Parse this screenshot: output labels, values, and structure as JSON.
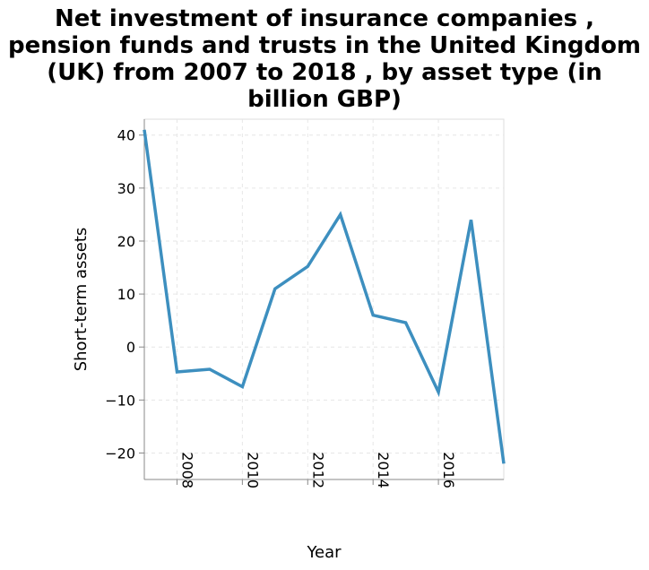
{
  "chart_data": {
    "type": "line",
    "title_lines": [
      "Net investment of insurance companies ,",
      "pension funds and trusts in the United Kingdom",
      "(UK) from 2007 to 2018 , by asset type (in",
      "billion GBP)"
    ],
    "xlabel": "Year",
    "ylabel": "Short-term assets",
    "xlim": [
      2007,
      2018
    ],
    "ylim": [
      -25,
      43
    ],
    "x_ticks": [
      2008,
      2010,
      2012,
      2014,
      2016
    ],
    "y_ticks": [
      -20,
      -10,
      0,
      10,
      20,
      30,
      40
    ],
    "y_tick_labels": [
      "−20",
      "−10",
      "0",
      "10",
      "20",
      "30",
      "40"
    ],
    "grid": true,
    "series": [
      {
        "color": "#3d8fbf",
        "x": [
          2007,
          2008,
          2009,
          2010,
          2011,
          2012,
          2013,
          2014,
          2015,
          2016,
          2017,
          2018
        ],
        "y": [
          41,
          -4.7,
          -4.2,
          -7.5,
          11,
          15.2,
          25,
          6,
          4.6,
          -8.5,
          24,
          -22
        ]
      }
    ]
  }
}
